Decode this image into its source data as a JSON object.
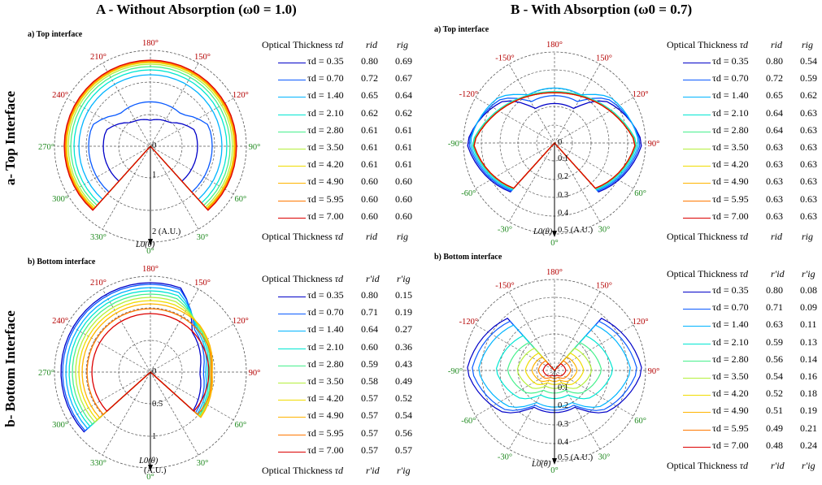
{
  "titles": {
    "A": "A - Without Absorption (ω0 = 1.0)",
    "B": "B - With Absorption (ω0 = 0.7)",
    "row_a": "a- Top Interface",
    "row_b": "b- Bottom Interface",
    "sub_top": "a) Top interface",
    "sub_bottom": "b) Bottom interface"
  },
  "legend_header": {
    "optical_thickness": "Optical Thickness",
    "tau": "τd",
    "rid": "rid",
    "rig": "rig",
    "rid_p": "r′id",
    "rig_p": "r′ig"
  },
  "colors": [
    "#0000c8",
    "#0a5aff",
    "#00b4ff",
    "#00e6d2",
    "#46f08c",
    "#b4f03c",
    "#f0dc00",
    "#ffb400",
    "#ff7800",
    "#dc0000"
  ],
  "tau_labels": [
    "τd = 0.35",
    "τd = 0.70",
    "τd = 1.40",
    "τd = 2.10",
    "τd = 2.80",
    "τd = 3.50",
    "τd = 4.20",
    "τd = 4.90",
    "τd = 5.95",
    "τd = 7.00"
  ],
  "angle_labels": {
    "A": [
      "180°",
      "150°",
      "120°",
      "90°",
      "60°",
      "30°",
      "0°",
      "330°",
      "300°",
      "270°",
      "240°",
      "210°"
    ],
    "B": [
      "180°",
      "150°",
      "120°",
      "90°",
      "60°",
      "30°",
      "0°",
      "-30°",
      "-60°",
      "-90°",
      "-120°",
      "-150°"
    ]
  },
  "radial_labels": {
    "A_top": [
      "0",
      "1",
      "2 (A.U.)"
    ],
    "A_bottom": [
      "0",
      "0.5",
      "1"
    ],
    "B_top": [
      "0",
      "0.1",
      "0.2",
      "0.3",
      "0.4",
      "0.5 (A.U.)"
    ],
    "B_bottom": [
      "0.1",
      "0.2",
      "0.3",
      "0.4",
      "0.5 (A.U.)"
    ]
  },
  "axis_label": "L0(θ)",
  "axis_unit": "(A.U.)",
  "chart_data": [
    {
      "id": "A_top",
      "type": "polar",
      "title": "a) Top interface",
      "series": [
        {
          "name": "τd = 0.35",
          "rid": "0.80",
          "rig": "0.69"
        },
        {
          "name": "τd = 0.70",
          "rid": "0.72",
          "rig": "0.67"
        },
        {
          "name": "τd = 1.40",
          "rid": "0.65",
          "rig": "0.64"
        },
        {
          "name": "τd = 2.10",
          "rid": "0.62",
          "rig": "0.62"
        },
        {
          "name": "τd = 2.80",
          "rid": "0.61",
          "rig": "0.61"
        },
        {
          "name": "τd = 3.50",
          "rid": "0.61",
          "rig": "0.61"
        },
        {
          "name": "τd = 4.20",
          "rid": "0.61",
          "rig": "0.61"
        },
        {
          "name": "τd = 4.90",
          "rid": "0.60",
          "rig": "0.60"
        },
        {
          "name": "τd = 5.95",
          "rid": "0.60",
          "rig": "0.60"
        },
        {
          "name": "τd = 7.00",
          "rid": "0.60",
          "rig": "0.60"
        }
      ]
    },
    {
      "id": "A_bottom",
      "type": "polar",
      "title": "b) Bottom interface",
      "series": [
        {
          "name": "τd = 0.35",
          "rid": "0.80",
          "rig": "0.15"
        },
        {
          "name": "τd = 0.70",
          "rid": "0.71",
          "rig": "0.19"
        },
        {
          "name": "τd = 1.40",
          "rid": "0.64",
          "rig": "0.27"
        },
        {
          "name": "τd = 2.10",
          "rid": "0.60",
          "rig": "0.36"
        },
        {
          "name": "τd = 2.80",
          "rid": "0.59",
          "rig": "0.43"
        },
        {
          "name": "τd = 3.50",
          "rid": "0.58",
          "rig": "0.49"
        },
        {
          "name": "τd = 4.20",
          "rid": "0.57",
          "rig": "0.52"
        },
        {
          "name": "τd = 4.90",
          "rid": "0.57",
          "rig": "0.54"
        },
        {
          "name": "τd = 5.95",
          "rid": "0.57",
          "rig": "0.56"
        },
        {
          "name": "τd = 7.00",
          "rid": "0.57",
          "rig": "0.57"
        }
      ]
    },
    {
      "id": "B_top",
      "type": "polar",
      "title": "a) Top interface",
      "series": [
        {
          "name": "τd = 0.35",
          "rid": "0.80",
          "rig": "0.54"
        },
        {
          "name": "τd = 0.70",
          "rid": "0.72",
          "rig": "0.59"
        },
        {
          "name": "τd = 1.40",
          "rid": "0.65",
          "rig": "0.62"
        },
        {
          "name": "τd = 2.10",
          "rid": "0.64",
          "rig": "0.63"
        },
        {
          "name": "τd = 2.80",
          "rid": "0.64",
          "rig": "0.63"
        },
        {
          "name": "τd = 3.50",
          "rid": "0.63",
          "rig": "0.63"
        },
        {
          "name": "τd = 4.20",
          "rid": "0.63",
          "rig": "0.63"
        },
        {
          "name": "τd = 4.90",
          "rid": "0.63",
          "rig": "0.63"
        },
        {
          "name": "τd = 5.95",
          "rid": "0.63",
          "rig": "0.63"
        },
        {
          "name": "τd = 7.00",
          "rid": "0.63",
          "rig": "0.63"
        }
      ]
    },
    {
      "id": "B_bottom",
      "type": "polar",
      "title": "b) Bottom interface",
      "series": [
        {
          "name": "τd = 0.35",
          "rid": "0.80",
          "rig": "0.08"
        },
        {
          "name": "τd = 0.70",
          "rid": "0.71",
          "rig": "0.09"
        },
        {
          "name": "τd = 1.40",
          "rid": "0.63",
          "rig": "0.11"
        },
        {
          "name": "τd = 2.10",
          "rid": "0.59",
          "rig": "0.13"
        },
        {
          "name": "τd = 2.80",
          "rid": "0.56",
          "rig": "0.14"
        },
        {
          "name": "τd = 3.50",
          "rid": "0.54",
          "rig": "0.16"
        },
        {
          "name": "τd = 4.20",
          "rid": "0.52",
          "rig": "0.18"
        },
        {
          "name": "τd = 4.90",
          "rid": "0.51",
          "rig": "0.19"
        },
        {
          "name": "τd = 5.95",
          "rid": "0.49",
          "rig": "0.21"
        },
        {
          "name": "τd = 7.00",
          "rid": "0.48",
          "rig": "0.24"
        }
      ]
    }
  ]
}
